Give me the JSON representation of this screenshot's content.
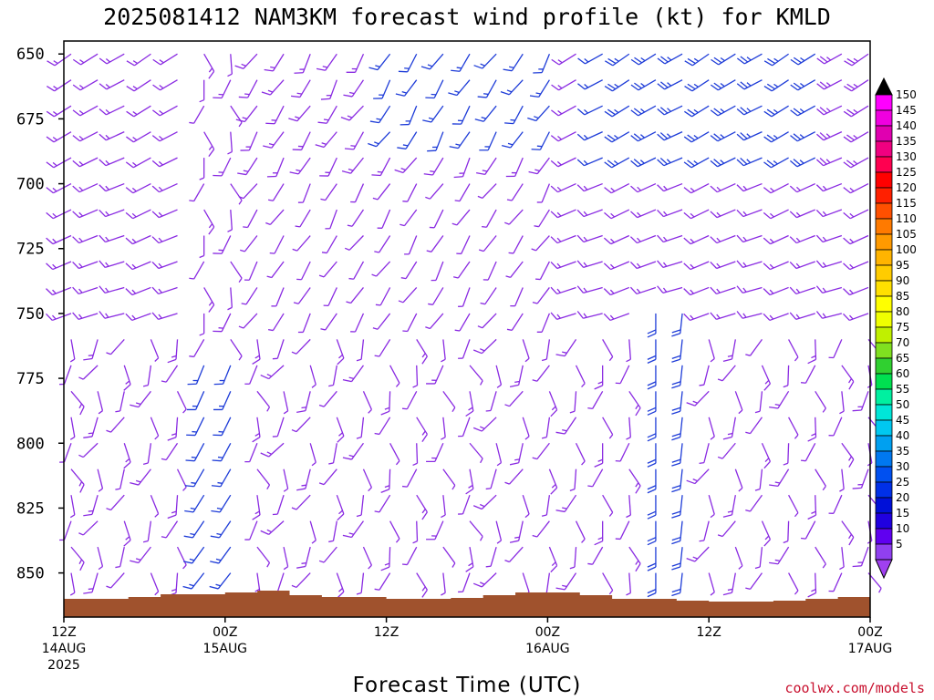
{
  "chart_data": {
    "type": "wind_barb_time_height",
    "title": "2025081412 NAM3KM forecast wind profile (kt) for KMLD",
    "xlabel": "Forecast Time (UTC)",
    "ylabel": "",
    "y_ticks": [
      650,
      675,
      700,
      725,
      750,
      775,
      800,
      825,
      850
    ],
    "ylim": [
      867,
      645
    ],
    "x_ticks": [
      {
        "hour": 0,
        "lines": [
          "12Z",
          "14AUG",
          "2025"
        ]
      },
      {
        "hour": 12,
        "lines": [
          "00Z",
          "15AUG"
        ]
      },
      {
        "hour": 24,
        "lines": [
          "12Z"
        ]
      },
      {
        "hour": 36,
        "lines": [
          "00Z",
          "16AUG"
        ]
      },
      {
        "hour": 48,
        "lines": [
          "12Z"
        ]
      },
      {
        "hour": 60,
        "lines": [
          "00Z",
          "17AUG"
        ]
      }
    ],
    "xlim": [
      0,
      60
    ],
    "colorbar": {
      "levels": [
        "150",
        "145",
        "140",
        "135",
        "130",
        "125",
        "120",
        "115",
        "110",
        "105",
        "100",
        "95",
        "90",
        "85",
        "80",
        "75",
        "70",
        "65",
        "60",
        "55",
        "50",
        "45",
        "40",
        "35",
        "30",
        "25",
        "20",
        "15",
        "10",
        "5"
      ],
      "colors": [
        "#ff00ff",
        "#f000e0",
        "#e000b0",
        "#f00080",
        "#ff0050",
        "#ff0000",
        "#ff2000",
        "#ff5000",
        "#ff7a00",
        "#ff9a00",
        "#ffb400",
        "#ffcc00",
        "#ffe000",
        "#ffff00",
        "#f0ff00",
        "#c0f000",
        "#80e020",
        "#30d030",
        "#00e050",
        "#00f0a0",
        "#00e6d8",
        "#00c8f0",
        "#00a0f0",
        "#0078f0",
        "#0050f0",
        "#0030e8",
        "#0010d8",
        "#2000e0",
        "#6000f0",
        "#9040f0"
      ],
      "top_arrow_color": "#000000",
      "bottom_arrow_color": "#a040f0"
    },
    "terrain_color": "#a0522d",
    "barb_colors": {
      "light": "#8a2be2",
      "moderate": "#1e3cd8",
      "strong": "#0050f0"
    }
  },
  "credit": "coolwx.com/models"
}
